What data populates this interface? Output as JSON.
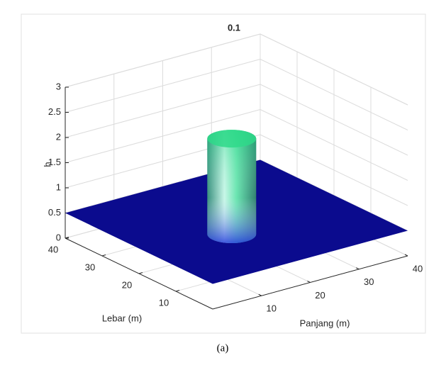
{
  "chart_data": {
    "type": "surface",
    "title": "0.1",
    "xlabel": "Panjang (m)",
    "ylabel": "Lebar (m)",
    "zlabel": "h",
    "xlim": [
      0,
      40
    ],
    "ylim": [
      0,
      40
    ],
    "zlim": [
      0,
      3
    ],
    "xticks": [
      10,
      20,
      30,
      40
    ],
    "yticks": [
      10,
      20,
      30,
      40
    ],
    "zticks": [
      0,
      0.5,
      1,
      1.5,
      2,
      2.5,
      3
    ],
    "grid": true,
    "surface": {
      "base": 0.5,
      "base_color": "#0b0b8e",
      "peak": {
        "x": 16,
        "y": 16,
        "radius": 4,
        "height": 2.4,
        "color": "#2fd98a"
      }
    }
  },
  "caption": "(a)"
}
